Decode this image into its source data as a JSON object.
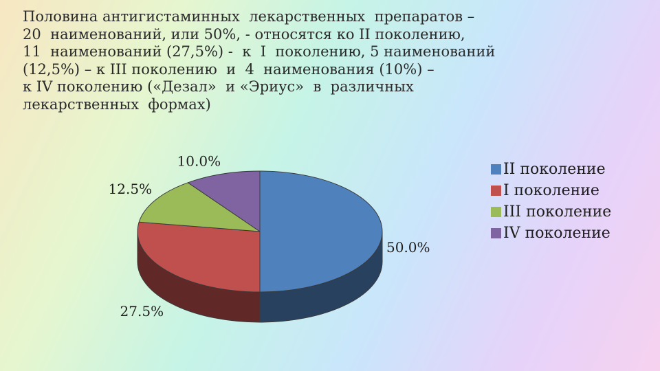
{
  "heading": {
    "lines": [
      "Половина антигистаминных  лекарственных  препаратов –",
      "20  наименований, или 50%, - относятся ко II поколению,",
      "11  наименований (27,5%) -  к  I  поколению, 5 наименований",
      "(12,5%) – к III поколению  и  4  наименования (10%) –",
      "к IV поколению («Дезал»  и «Эриус»  в  различных",
      "лекарственных  формах)"
    ]
  },
  "chart_data": {
    "type": "pie",
    "style": "3d",
    "title": "",
    "series": [
      {
        "name": "II поколение",
        "value": 50.0,
        "label": "50.0%",
        "color": "#4f81bd"
      },
      {
        "name": "I  поколение",
        "value": 27.5,
        "label": "27.5%",
        "color": "#c0504d"
      },
      {
        "name": "III поколение",
        "value": 12.5,
        "label": "12.5%",
        "color": "#9bbb59"
      },
      {
        "name": "IV поколение",
        "value": 10.0,
        "label": "10.0%",
        "color": "#8064a2"
      }
    ],
    "legend_position": "right"
  }
}
